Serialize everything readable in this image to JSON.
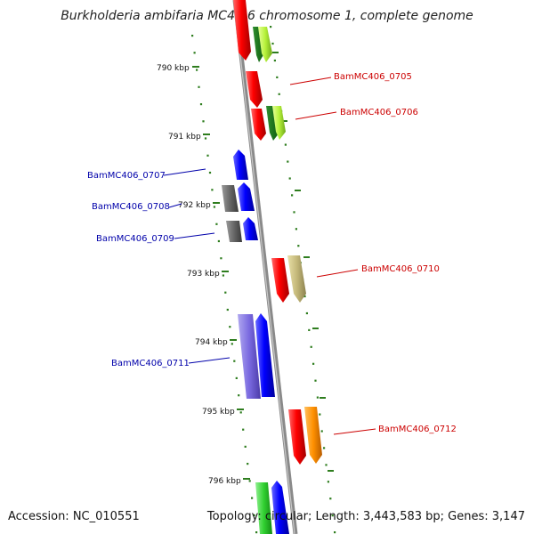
{
  "title": "Burkholderia ambifaria MC40-6 chromosome 1, complete genome",
  "footer": {
    "accession": "Accession: NC_010551",
    "summary": "Topology: circular; Length: 3,443,583 bp; Genes: 3,147"
  },
  "axis": {
    "ticks": [
      "790 kbp",
      "791 kbp",
      "792 kbp",
      "793 kbp",
      "794 kbp",
      "795 kbp",
      "796 kbp"
    ]
  },
  "colors": {
    "backbone": "#8a8a8a",
    "tick": "#2e7d1e",
    "label_forward": "#cc0000",
    "label_reverse": "#0000aa"
  },
  "gene_labels": {
    "forward": [
      "BamMC406_0705",
      "BamMC406_0706",
      "BamMC406_0710",
      "BamMC406_0712"
    ],
    "reverse": [
      "BamMC406_0707",
      "BamMC406_0708",
      "BamMC406_0709",
      "BamMC406_0711"
    ]
  }
}
